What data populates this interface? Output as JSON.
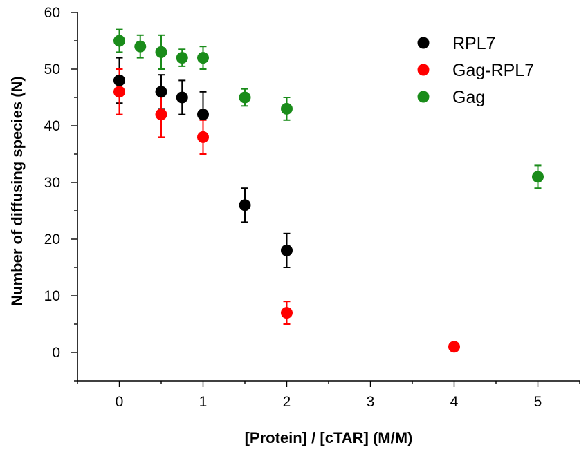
{
  "chart_data": {
    "type": "scatter",
    "title": "",
    "xlabel": "[Protein] / [cTAR] (M/M)",
    "ylabel": "Number of diffusing species (N)",
    "xlim": [
      -0.5,
      5.5
    ],
    "ylim": [
      -5,
      60
    ],
    "xticks": [
      0,
      1,
      2,
      3,
      4,
      5
    ],
    "yticks": [
      0,
      10,
      20,
      30,
      40,
      50,
      60
    ],
    "grid": false,
    "legend_position": "top-right",
    "series": [
      {
        "name": "RPL7",
        "color": "#000000",
        "points": [
          {
            "x": 0,
            "y": 48,
            "err": 4
          },
          {
            "x": 0.5,
            "y": 46,
            "err": 3
          },
          {
            "x": 0.75,
            "y": 45,
            "err": 3
          },
          {
            "x": 1,
            "y": 42,
            "err": 4
          },
          {
            "x": 1.5,
            "y": 26,
            "err": 3
          },
          {
            "x": 2,
            "y": 18,
            "err": 3
          }
        ]
      },
      {
        "name": "Gag-RPL7",
        "color": "#ff0000",
        "points": [
          {
            "x": 0,
            "y": 46,
            "err": 4
          },
          {
            "x": 0.5,
            "y": 42,
            "err": 4
          },
          {
            "x": 1,
            "y": 38,
            "err": 3
          },
          {
            "x": 2,
            "y": 7,
            "err": 2
          },
          {
            "x": 4,
            "y": 1,
            "err": 0.5
          }
        ]
      },
      {
        "name": "Gag",
        "color": "#1a8c1a",
        "points": [
          {
            "x": 0,
            "y": 55,
            "err": 2
          },
          {
            "x": 0.25,
            "y": 54,
            "err": 2
          },
          {
            "x": 0.5,
            "y": 53,
            "err": 3
          },
          {
            "x": 0.75,
            "y": 52,
            "err": 1.5
          },
          {
            "x": 1,
            "y": 52,
            "err": 2
          },
          {
            "x": 1.5,
            "y": 45,
            "err": 1.5
          },
          {
            "x": 2,
            "y": 43,
            "err": 2
          },
          {
            "x": 5,
            "y": 31,
            "err": 2
          }
        ]
      }
    ]
  }
}
